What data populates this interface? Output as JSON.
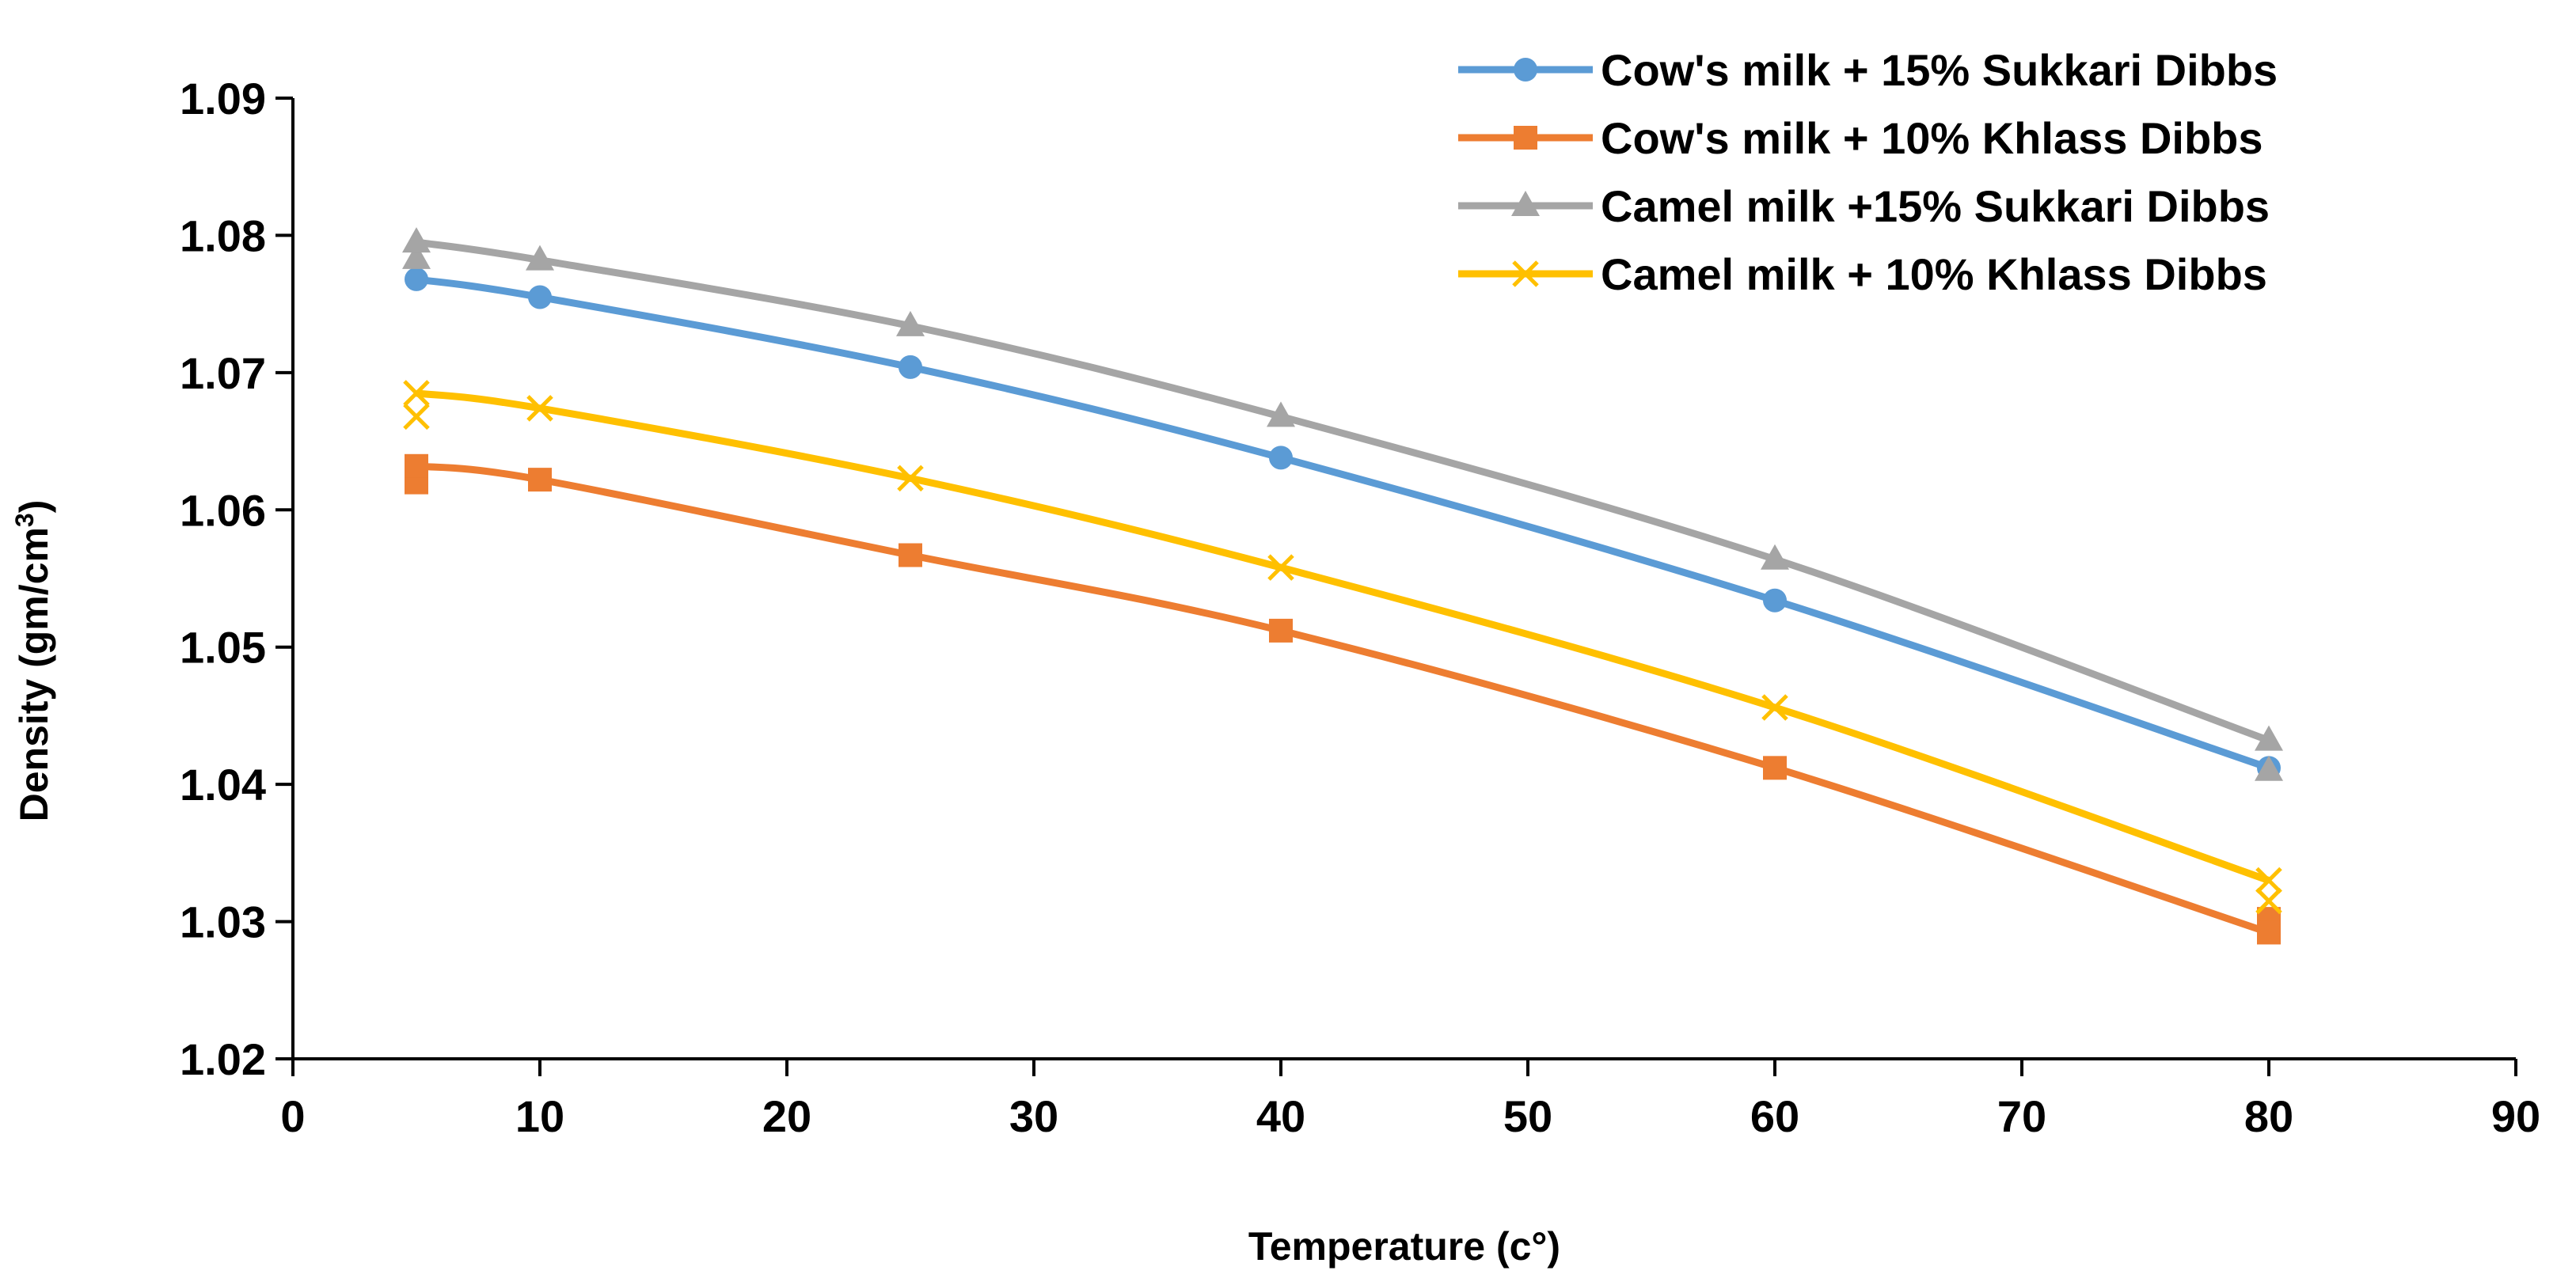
{
  "chart_data": {
    "type": "line",
    "title": "",
    "xlabel": "Temperature (c°)",
    "ylabel": {
      "main": "Density (gm/cm",
      "sup": "3",
      "close": ")"
    },
    "xlim": [
      0,
      90
    ],
    "ylim": [
      1.02,
      1.09
    ],
    "xticks": [
      "0",
      "10",
      "20",
      "30",
      "40",
      "50",
      "60",
      "70",
      "80",
      "90"
    ],
    "yticks": [
      "1.02",
      "1.03",
      "1.04",
      "1.05",
      "1.06",
      "1.07",
      "1.08",
      "1.09"
    ],
    "grid": false,
    "legend_position": "top-right",
    "x": [
      5,
      10,
      25,
      40,
      60,
      80
    ],
    "series": [
      {
        "name": "Cow's milk + 15% Sukkari Dibbs",
        "color": "#5B9BD5",
        "marker": "circle",
        "values": [
          1.0768,
          1.0755,
          1.0704,
          1.0638,
          1.0534,
          1.0412
        ],
        "extra_points": []
      },
      {
        "name": "Cow's milk + 10% Khlass Dibbs",
        "color": "#ED7D31",
        "marker": "square",
        "values": [
          1.0632,
          1.0622,
          1.0567,
          1.0512,
          1.0412,
          1.0292
        ],
        "extra_points": [
          [
            5,
            1.062
          ],
          [
            80,
            1.0302
          ]
        ]
      },
      {
        "name": "Camel milk +15% Sukkari Dibbs",
        "color": "#A5A5A5",
        "marker": "triangle",
        "values": [
          1.0795,
          1.0782,
          1.0734,
          1.0668,
          1.0564,
          1.0432
        ],
        "extra_points": [
          [
            5,
            1.0783
          ],
          [
            80,
            1.041
          ]
        ]
      },
      {
        "name": "Camel milk + 10% Khlass Dibbs",
        "color": "#FFC000",
        "marker": "x",
        "values": [
          1.0685,
          1.0674,
          1.0623,
          1.0558,
          1.0456,
          1.033
        ],
        "extra_points": [
          [
            5,
            1.0668
          ],
          [
            80,
            1.0315
          ]
        ]
      }
    ]
  }
}
